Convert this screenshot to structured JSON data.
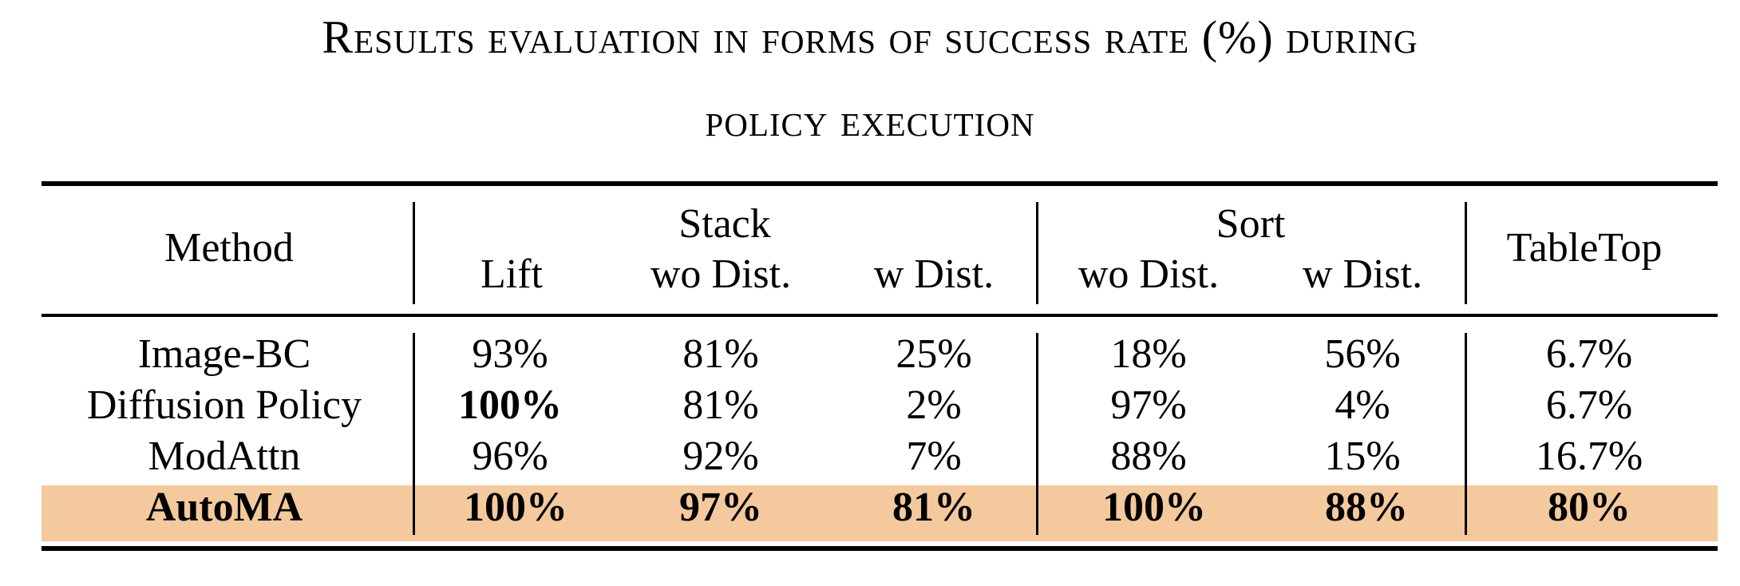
{
  "caption": {
    "line1": "Results evaluation in forms of success rate (%) during",
    "line2": "policy execution"
  },
  "table": {
    "header": {
      "method": "Method",
      "lift": "Lift",
      "stack": "Stack",
      "sort": "Sort",
      "tabletop": "TableTop",
      "stack_wo": "wo Dist.",
      "stack_w": "w Dist.",
      "sort_wo": "wo Dist.",
      "sort_w": "w Dist."
    },
    "rows": [
      {
        "method": "Image-BC",
        "lift": "93%",
        "stack_wo": "81%",
        "stack_w": "25%",
        "sort_wo": "18%",
        "sort_w": "56%",
        "tabletop": "6.7%"
      },
      {
        "method": "Diffusion Policy",
        "lift": "100%",
        "stack_wo": "81%",
        "stack_w": "2%",
        "sort_wo": "97%",
        "sort_w": "4%",
        "tabletop": "6.7%"
      },
      {
        "method": "ModAttn",
        "lift": "96%",
        "stack_wo": "92%",
        "stack_w": "7%",
        "sort_wo": "88%",
        "sort_w": "15%",
        "tabletop": "16.7%"
      },
      {
        "method": "AutoMA",
        "lift": "100%",
        "stack_wo": "97%",
        "stack_w": "81%",
        "sort_wo": "100%",
        "sort_w": "88%",
        "tabletop": "80%"
      }
    ],
    "highlight_color": "#f4c99d"
  }
}
